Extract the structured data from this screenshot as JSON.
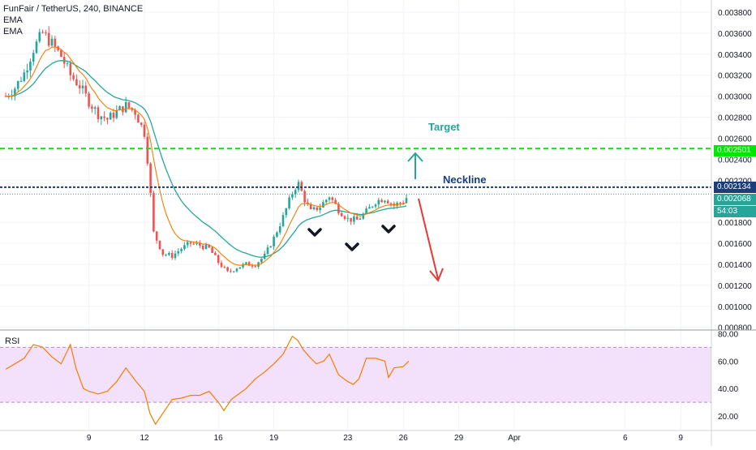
{
  "header": {
    "symbol_line": "FunFair / TetherUS, 240, BINANCE",
    "indicator_1": "EMA",
    "indicator_2": "EMA"
  },
  "annotations": {
    "target": "Target",
    "neckline": "Neckline"
  },
  "price_labels": {
    "target_price": "0.002501",
    "neckline_price": "0.002134",
    "current_price": "0.002068",
    "countdown": "54:03"
  },
  "rsi_panel": {
    "title": "RSI",
    "ticks": [
      "80.00",
      "60.00",
      "40.00",
      "20.00"
    ]
  },
  "colors": {
    "up": "#26a69a",
    "down": "#ef5350",
    "ema_fast": "#f57c00",
    "ema_slow": "#26a69a",
    "target_line": "#00e600",
    "neckline": "#1a3d7c",
    "rsi_line": "#f57c00",
    "rsi_band": "#f3e1fb",
    "arrow_up": "#26a69a",
    "arrow_down": "#e53935",
    "shoulder_marks": "#131722"
  },
  "chart_data": {
    "type": "line",
    "title": "FunFair / TetherUS, 240, BINANCE",
    "x_tick_labels": [
      "9",
      "12",
      "16",
      "19",
      "23",
      "26",
      "29",
      "Apr",
      "6",
      "9"
    ],
    "x": [
      4.5,
      5,
      5.5,
      6,
      6.5,
      7,
      7.5,
      8,
      8.5,
      9,
      9.5,
      10,
      10.5,
      11,
      11.5,
      12,
      12.2,
      12.5,
      13,
      13.5,
      14,
      14.5,
      15,
      15.5,
      16,
      16.5,
      17,
      17.5,
      18,
      18.5,
      19,
      19.5,
      20,
      20.3,
      20.7,
      21,
      21.5,
      22,
      22.5,
      23,
      23.5,
      24,
      24.5,
      25,
      25.5,
      26,
      26.3
    ],
    "y_axis": {
      "ticks": [
        "0.003800",
        "0.003600",
        "0.003400",
        "0.003200",
        "0.003000",
        "0.002800",
        "0.002600",
        "0.002400",
        "0.002200",
        "0.001800",
        "0.001600",
        "0.001400",
        "0.001200",
        "0.001000",
        "0.000800"
      ],
      "ylim": [
        0.00079,
        0.0039
      ]
    },
    "series": [
      {
        "values": [
          0.003,
          0.00308,
          0.00322,
          0.00345,
          0.0036,
          0.0035,
          0.00338,
          0.0032,
          0.0031,
          0.00295,
          0.00283,
          0.00278,
          0.00285,
          0.00291,
          0.00285,
          0.00265,
          0.00235,
          0.0017,
          0.0015,
          0.00148,
          0.00155,
          0.0016,
          0.00158,
          0.00155,
          0.00142,
          0.00132,
          0.00137,
          0.0014,
          0.0014,
          0.00148,
          0.00165,
          0.00185,
          0.00208,
          0.00218,
          0.002,
          0.0019,
          0.00195,
          0.00205,
          0.00192,
          0.00183,
          0.00182,
          0.0019,
          0.002,
          0.00203,
          0.00196,
          0.002,
          0.00206
        ]
      }
    ],
    "rsi": {
      "ylim": [
        10,
        82
      ],
      "band": [
        30,
        70
      ],
      "x": [
        4.5,
        5,
        5.5,
        6,
        6.5,
        7,
        7.5,
        8,
        8.3,
        8.7,
        9,
        9.5,
        10,
        10.5,
        11,
        11.5,
        12,
        12.3,
        12.6,
        13,
        13.5,
        14,
        14.5,
        15,
        15.5,
        16,
        16.3,
        16.7,
        17,
        17.5,
        18,
        18.5,
        19,
        19.5,
        20,
        20.3,
        20.6,
        21,
        21.3,
        21.7,
        22,
        22.5,
        23,
        23.3,
        23.6,
        24,
        24.5,
        25,
        25.2,
        25.5,
        26,
        26.3
      ],
      "values": [
        54,
        58,
        62,
        72,
        70,
        63,
        58,
        72,
        55,
        40,
        38,
        36,
        38,
        45,
        55,
        46,
        38,
        22,
        14,
        22,
        32,
        33,
        35,
        35,
        38,
        30,
        24,
        32,
        35,
        40,
        47,
        52,
        58,
        65,
        78,
        75,
        68,
        62,
        58,
        60,
        65,
        50,
        45,
        43,
        47,
        62,
        62,
        60,
        48,
        55,
        56,
        60
      ]
    },
    "levels": {
      "target": 0.002501,
      "neckline": 0.002134,
      "current": 0.002068
    }
  }
}
